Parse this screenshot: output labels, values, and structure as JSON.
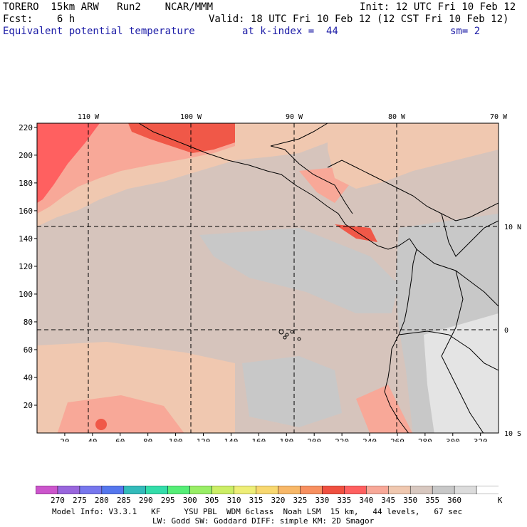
{
  "header": {
    "line1_left": "TORERO  15km ARW   Run2    NCAR/MMM",
    "line1_right": "Init: 12 UTC Fri 10 Feb 12",
    "line2_left": "Fcst:    6 h",
    "line2_right": "Valid: 18 UTC Fri 10 Feb 12 (12 CST Fri 10 Feb 12)",
    "line3_field": "Equivalent potential temperature",
    "line3_level": "at k-index =  44",
    "line3_sm": "sm= 2"
  },
  "map": {
    "top_lon_labels": [
      "110 W",
      "100 W",
      "90 W",
      "80 W",
      "70 W"
    ],
    "right_lat_labels": [
      "10 N",
      "0",
      "10 S"
    ],
    "y_ticks": [
      "220",
      "200",
      "180",
      "160",
      "140",
      "120",
      "100",
      "80",
      "60",
      "40",
      "20"
    ],
    "x_ticks": [
      "20",
      "40",
      "60",
      "80",
      "100",
      "120",
      "140",
      "160",
      "180",
      "200",
      "220",
      "240",
      "260",
      "280",
      "300",
      "320"
    ]
  },
  "colorbar": {
    "levels": [
      "270",
      "275",
      "280",
      "285",
      "290",
      "295",
      "300",
      "305",
      "310",
      "315",
      "320",
      "325",
      "330",
      "335",
      "340",
      "345",
      "350",
      "355",
      "360"
    ],
    "unit": "K",
    "colors": [
      "#cc55cc",
      "#9966dd",
      "#7777ee",
      "#5577ee",
      "#33bbbb",
      "#33ddaa",
      "#55ee77",
      "#99ee66",
      "#ccee66",
      "#eeee77",
      "#f8d870",
      "#f8b868",
      "#f89060",
      "#f05040",
      "#ff6060",
      "#f8a898",
      "#f0c8b0",
      "#d8c8c0",
      "#c8c8c8",
      "#dcdcdc",
      "#ffffff"
    ]
  },
  "footer": {
    "line1": "Model Info: V3.3.1   KF     YSU PBL  WDM 6class  Noah LSM  15 km,   44 levels,   67 sec",
    "line2": "LW: Godd SW: Goddard DIFF: simple KM: 2D Smagor"
  }
}
